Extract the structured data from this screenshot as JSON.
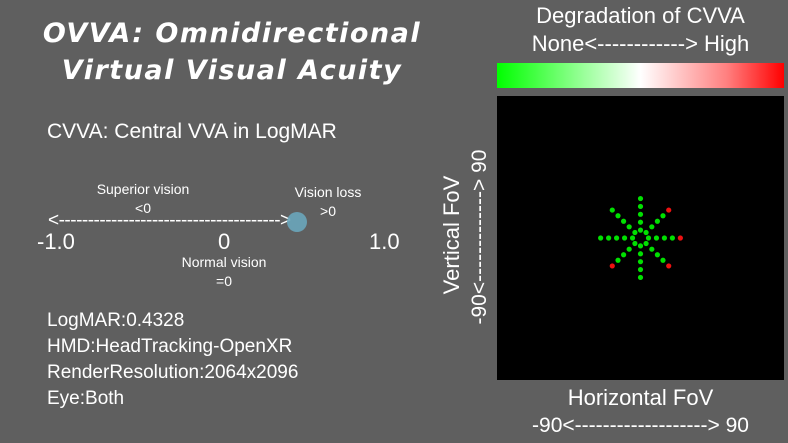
{
  "title": {
    "line1": "OVVA: Omnidirectional",
    "line2": "Virtual Visual Acuity"
  },
  "subtitle": "CVVA: Central VVA in LogMAR",
  "scale": {
    "superior_label": "Superior vision",
    "superior_value": "<0",
    "loss_label": "Vision loss",
    "loss_value": ">0",
    "normal_label": "Normal vision",
    "normal_value": "=0",
    "arrow": "<-------------------------------------->",
    "left_num": "-1.0",
    "mid_num": "0",
    "right_num": "1.0",
    "min": -1.0,
    "max": 1.0,
    "indicator_value": 0.4328
  },
  "info": {
    "logmar": "LogMAR:0.4328",
    "hmd": "HMD:HeadTracking-OpenXR",
    "resolution": "RenderResolution:2064x2096",
    "eye": "Eye:Both"
  },
  "legend": {
    "title": "Degradation of CVVA",
    "range": "None<------------> High"
  },
  "plot": {
    "xlabel": "Horizontal FoV",
    "xrange_label": "-90<-------------------> 90",
    "ylabel": "Vertical FoV",
    "yrange_label": "-90<-------------> 90",
    "colors": {
      "good": "#00e000",
      "bad": "#ee1111"
    }
  },
  "chart_data": {
    "type": "scatter",
    "xlim": [
      -90,
      90
    ],
    "ylim": [
      -90,
      90
    ],
    "angles_deg": [
      0,
      45,
      90,
      135,
      180,
      225,
      270,
      315
    ],
    "radii_deg": [
      5,
      10,
      15,
      20,
      25
    ],
    "red_points": [
      [
        25,
        0
      ],
      [
        17.7,
        17.7
      ],
      [
        -17.7,
        -17.7
      ],
      [
        17.7,
        -17.7
      ]
    ]
  }
}
